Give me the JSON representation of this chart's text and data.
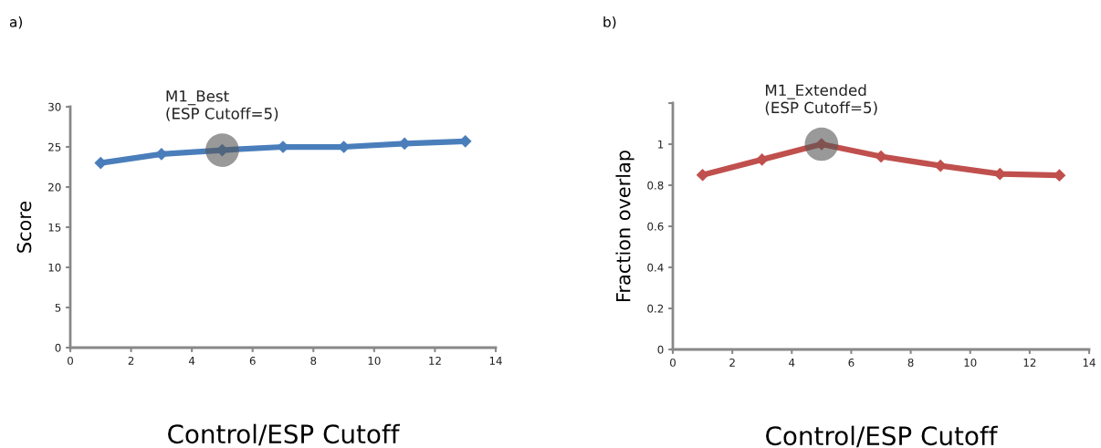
{
  "chart_data": [
    {
      "type": "line",
      "xlabel": "Control/ESP Cutoff",
      "ylabel": "Score",
      "x": [
        1,
        3,
        5,
        7,
        9,
        11,
        13
      ],
      "series": [
        {
          "color": "#4a7ebb",
          "values": [
            23.0,
            24.1,
            24.6,
            25.0,
            25.0,
            25.4,
            25.7
          ]
        }
      ],
      "xlim": [
        0,
        14
      ],
      "xticks": [
        0,
        2,
        4,
        6,
        8,
        10,
        12,
        14
      ],
      "ylim": [
        0,
        30
      ],
      "yticks": [
        0,
        5,
        10,
        15,
        20,
        25,
        30
      ],
      "grid": false,
      "legend": false,
      "marker": "diamond",
      "line_style": "solid",
      "annotations": [
        "a)",
        {
          "text": "M1_Best\n(ESP Cutoff=5)",
          "x": 5,
          "y": 24.6
        }
      ]
    },
    {
      "type": "line",
      "xlabel": "Control/ESP Cutoff",
      "ylabel": "Fraction overlap",
      "x": [
        1,
        3,
        5,
        7,
        9,
        11,
        13
      ],
      "series": [
        {
          "color": "#c0504d",
          "values": [
            0.85,
            0.925,
            1.0,
            0.94,
            0.895,
            0.855,
            0.848
          ]
        }
      ],
      "xlim": [
        0,
        14
      ],
      "xticks": [
        0,
        2,
        4,
        6,
        8,
        10,
        12,
        14
      ],
      "ylim": [
        0,
        1.2
      ],
      "yticks": [
        0,
        0.2,
        0.4,
        0.6,
        0.8,
        1,
        {
          "value": 1.2,
          "label": null
        }
      ],
      "grid": false,
      "legend": false,
      "marker": "diamond",
      "line_style": "solid",
      "annotations": [
        "b)",
        {
          "text": "M1_Extended\n(ESP Cutoff=5)",
          "x": 5,
          "y": 1.0
        }
      ]
    }
  ]
}
